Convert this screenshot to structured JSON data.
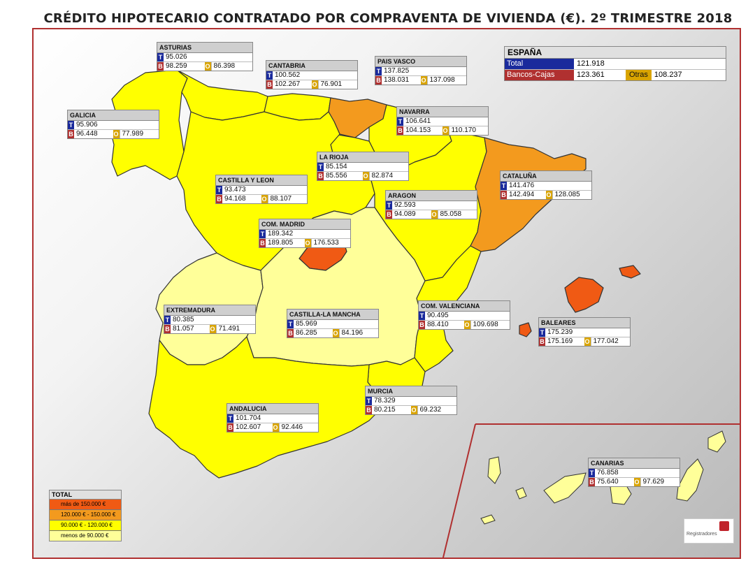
{
  "title": "CRÉDITO HIPOTECARIO CONTRATADO POR COMPRAVENTA DE VIVIENDA (€). 2º TRIMESTRE 2018",
  "colors": {
    "above_150k": "#f05a14",
    "r120_150k": "#f39a1e",
    "r90_120k": "#ffff00",
    "below_90k": "#ffff99",
    "total_badge": "#1a2a9c",
    "banks_badge": "#b03030",
    "others_badge": "#d9a400"
  },
  "espana": {
    "name": "ESPAÑA",
    "total_label": "Total",
    "total_value": "121.918",
    "banks_label": "Bancos-Cajas",
    "banks_value": "123.361",
    "others_label": "Otras",
    "others_value": "108.237"
  },
  "badges": {
    "t": "T",
    "b": "B",
    "o": "O"
  },
  "regions": {
    "asturias": {
      "name": "ASTURIAS",
      "t": "95.026",
      "b": "98.259",
      "o": "86.398"
    },
    "cantabria": {
      "name": "CANTABRIA",
      "t": "100.562",
      "b": "102.267",
      "o": "76.901"
    },
    "pais_vasco": {
      "name": "PAIS VASCO",
      "t": "137.825",
      "b": "138.031",
      "o": "137.098"
    },
    "galicia": {
      "name": "GALICIA",
      "t": "95.906",
      "b": "96.448",
      "o": "77.989"
    },
    "navarra": {
      "name": "NAVARRA",
      "t": "106.641",
      "b": "104.153",
      "o": "110.170"
    },
    "la_rioja": {
      "name": "LA RIOJA",
      "t": "85.154",
      "b": "85.556",
      "o": "82.874"
    },
    "cataluna": {
      "name": "CATALUÑA",
      "t": "141.476",
      "b": "142.494",
      "o": "128.085"
    },
    "castilla_leon": {
      "name": "CASTILLA Y LEON",
      "t": "93.473",
      "b": "94.168",
      "o": "88.107"
    },
    "aragon": {
      "name": "ARAGON",
      "t": "92.593",
      "b": "94.089",
      "o": "85.058"
    },
    "madrid": {
      "name": "COM. MADRID",
      "t": "189.342",
      "b": "189.805",
      "o": "176.533"
    },
    "valenciana": {
      "name": "COM. VALENCIANA",
      "t": "90.495",
      "b": "88.410",
      "o": "109.698"
    },
    "extremadura": {
      "name": "EXTREMADURA",
      "t": "80.385",
      "b": "81.057",
      "o": "71.491"
    },
    "castilla_mancha": {
      "name": "CASTILLA-LA MANCHA",
      "t": "85.969",
      "b": "86.285",
      "o": "84.196"
    },
    "baleares": {
      "name": "BALEARES",
      "t": "175.239",
      "b": "175.169",
      "o": "177.042"
    },
    "murcia": {
      "name": "MURCIA",
      "t": "78.329",
      "b": "80.215",
      "o": "69.232"
    },
    "andalucia": {
      "name": "ANDALUCIA",
      "t": "101.704",
      "b": "102.607",
      "o": "92.446"
    },
    "canarias": {
      "name": "CANARIAS",
      "t": "76.858",
      "b": "75.640",
      "o": "97.629"
    }
  },
  "legend": {
    "title": "TOTAL",
    "items": [
      "más de 150.000 €",
      "120.000 € - 150.000 €",
      "90.000 € - 120.000 €",
      "menos de 90.000 €"
    ]
  },
  "logo_text": "Registradores"
}
